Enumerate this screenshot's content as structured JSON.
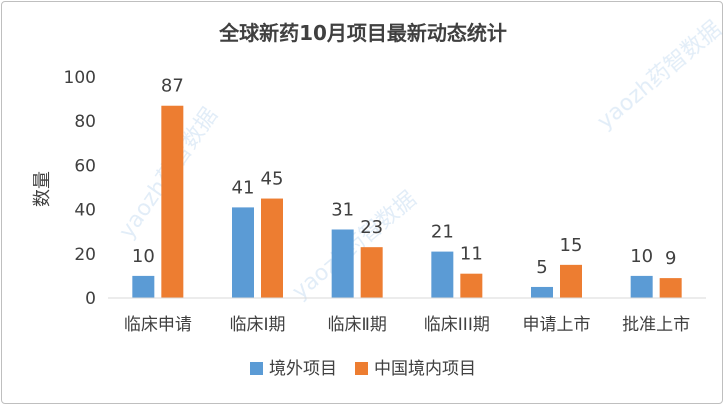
{
  "chart_data": {
    "type": "bar",
    "title": "全球新药10月项目最新动态统计",
    "xlabel": "",
    "ylabel": "数量",
    "categories": [
      "临床申请",
      "临床Ⅰ期",
      "临床Ⅱ期",
      "临床III期",
      "申请上市",
      "批准上市"
    ],
    "series": [
      {
        "name": "境外项目",
        "values": [
          10,
          41,
          31,
          21,
          5,
          10
        ],
        "color": "#5b9bd5"
      },
      {
        "name": "中国境内项目",
        "values": [
          87,
          45,
          23,
          11,
          15,
          9
        ],
        "color": "#ed7d31"
      }
    ],
    "yticks": [
      0,
      20,
      40,
      60,
      80,
      100
    ],
    "ylim": [
      0,
      100
    ],
    "grid": false,
    "legend": "bottom",
    "data_labels": true,
    "watermark": "yaozh药智数据"
  }
}
